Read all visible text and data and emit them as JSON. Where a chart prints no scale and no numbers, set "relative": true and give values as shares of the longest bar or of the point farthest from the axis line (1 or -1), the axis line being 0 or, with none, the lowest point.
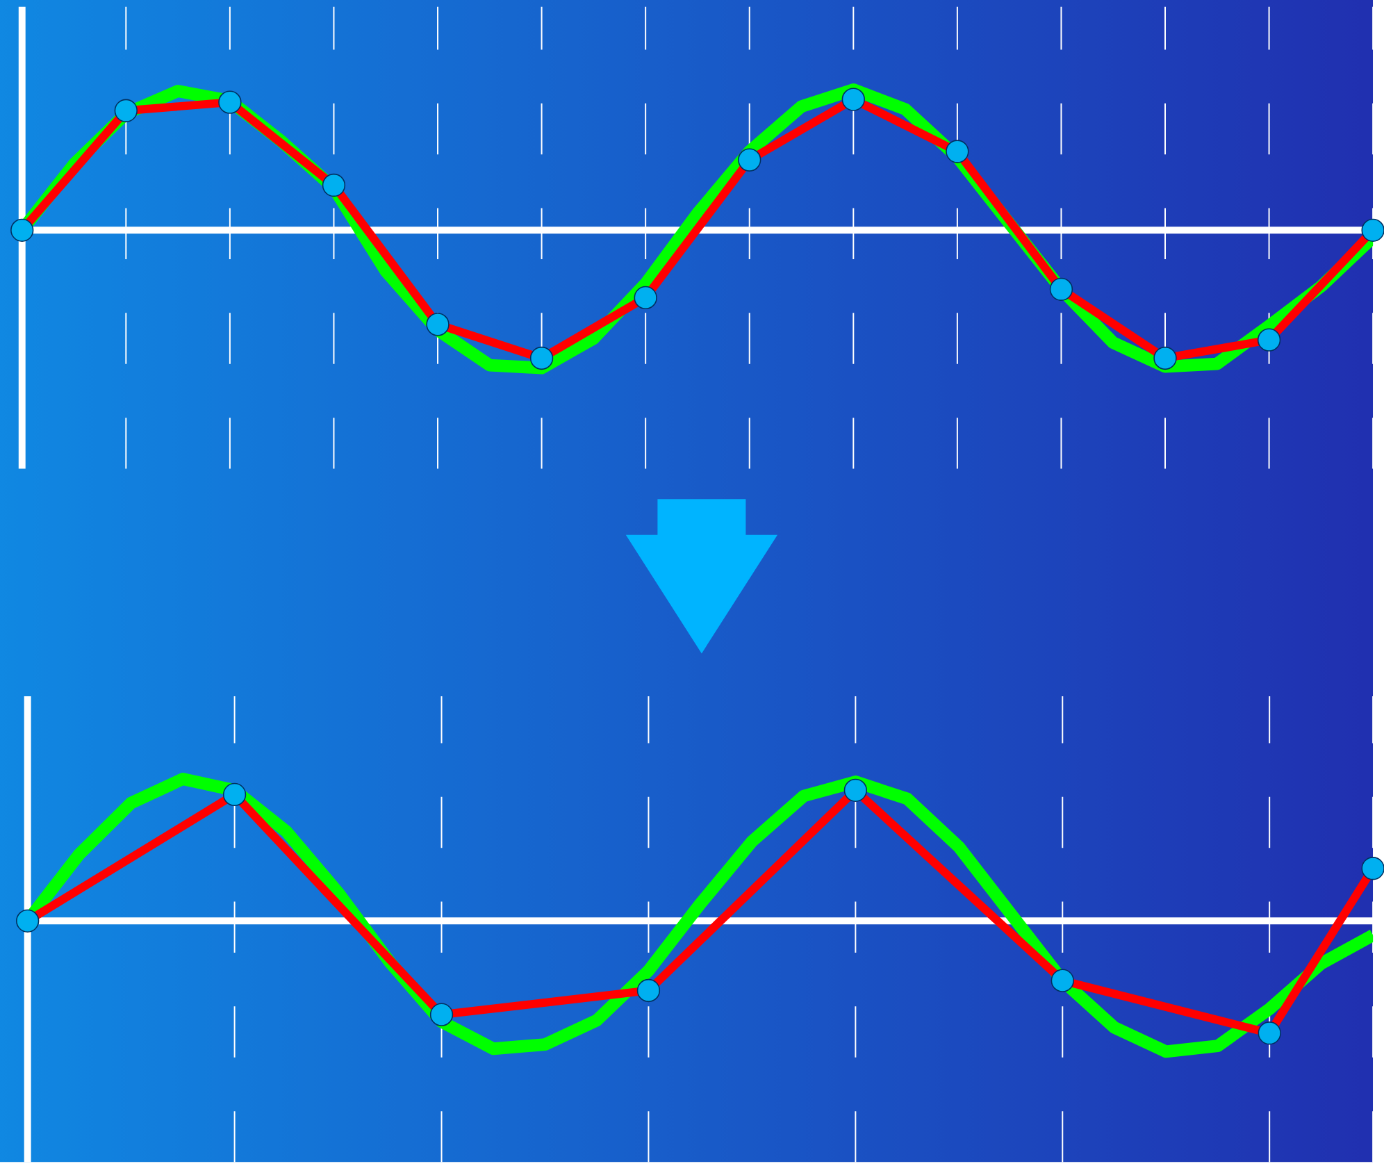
{
  "chart_data": [
    {
      "type": "line",
      "relative": true,
      "grid": "x",
      "categories": [
        null,
        null,
        null,
        null,
        null,
        null,
        null,
        null,
        null,
        null,
        null,
        null,
        null,
        null,
        null,
        null,
        null,
        null,
        null,
        null,
        null,
        null,
        null,
        null,
        null,
        null,
        null
      ],
      "series": [
        {
          "color": "#00ff00",
          "marker": "none",
          "values": [
            0,
            0.47,
            0.83,
            0.99,
            0.92,
            0.63,
            0.3,
            -0.29,
            -0.71,
            -0.96,
            -0.98,
            -0.77,
            -0.38,
            0.12,
            0.56,
            0.88,
            1.0,
            0.86,
            0.52,
            0.05,
            -0.42,
            -0.8,
            -0.97,
            -0.95,
            -0.68,
            -0.4,
            -0.05
          ]
        },
        {
          "color": "#ff0000",
          "marker": "circle",
          "values": [
            0,
            null,
            0.85,
            null,
            0.91,
            null,
            0.32,
            null,
            -0.67,
            null,
            -0.91,
            null,
            -0.48,
            null,
            0.5,
            null,
            0.93,
            null,
            0.56,
            null,
            -0.42,
            null,
            -0.91,
            null,
            -0.78,
            null,
            0
          ]
        }
      ]
    },
    {
      "type": "line",
      "relative": true,
      "grid": "x",
      "categories": [
        null,
        null,
        null,
        null,
        null,
        null,
        null,
        null,
        null,
        null,
        null,
        null,
        null,
        null,
        null,
        null,
        null,
        null,
        null,
        null,
        null,
        null,
        null,
        null,
        null,
        null,
        null
      ],
      "series": [
        {
          "color": "#00ff00",
          "marker": "none",
          "values": [
            0,
            0.47,
            0.83,
            1.0,
            0.92,
            0.63,
            0.2,
            -0.29,
            -0.71,
            -0.9,
            -0.87,
            -0.7,
            -0.35,
            0.12,
            0.56,
            0.88,
            0.98,
            0.86,
            0.52,
            0.05,
            -0.42,
            -0.75,
            -0.92,
            -0.88,
            -0.62,
            -0.3,
            -0.1
          ]
        },
        {
          "color": "#ff0000",
          "marker": "circle",
          "values": [
            0,
            null,
            null,
            null,
            0.89,
            null,
            null,
            null,
            -0.66,
            null,
            null,
            null,
            -0.49,
            null,
            null,
            null,
            0.92,
            null,
            null,
            null,
            -0.42,
            null,
            null,
            null,
            -0.79,
            null,
            0.37
          ]
        }
      ]
    }
  ]
}
